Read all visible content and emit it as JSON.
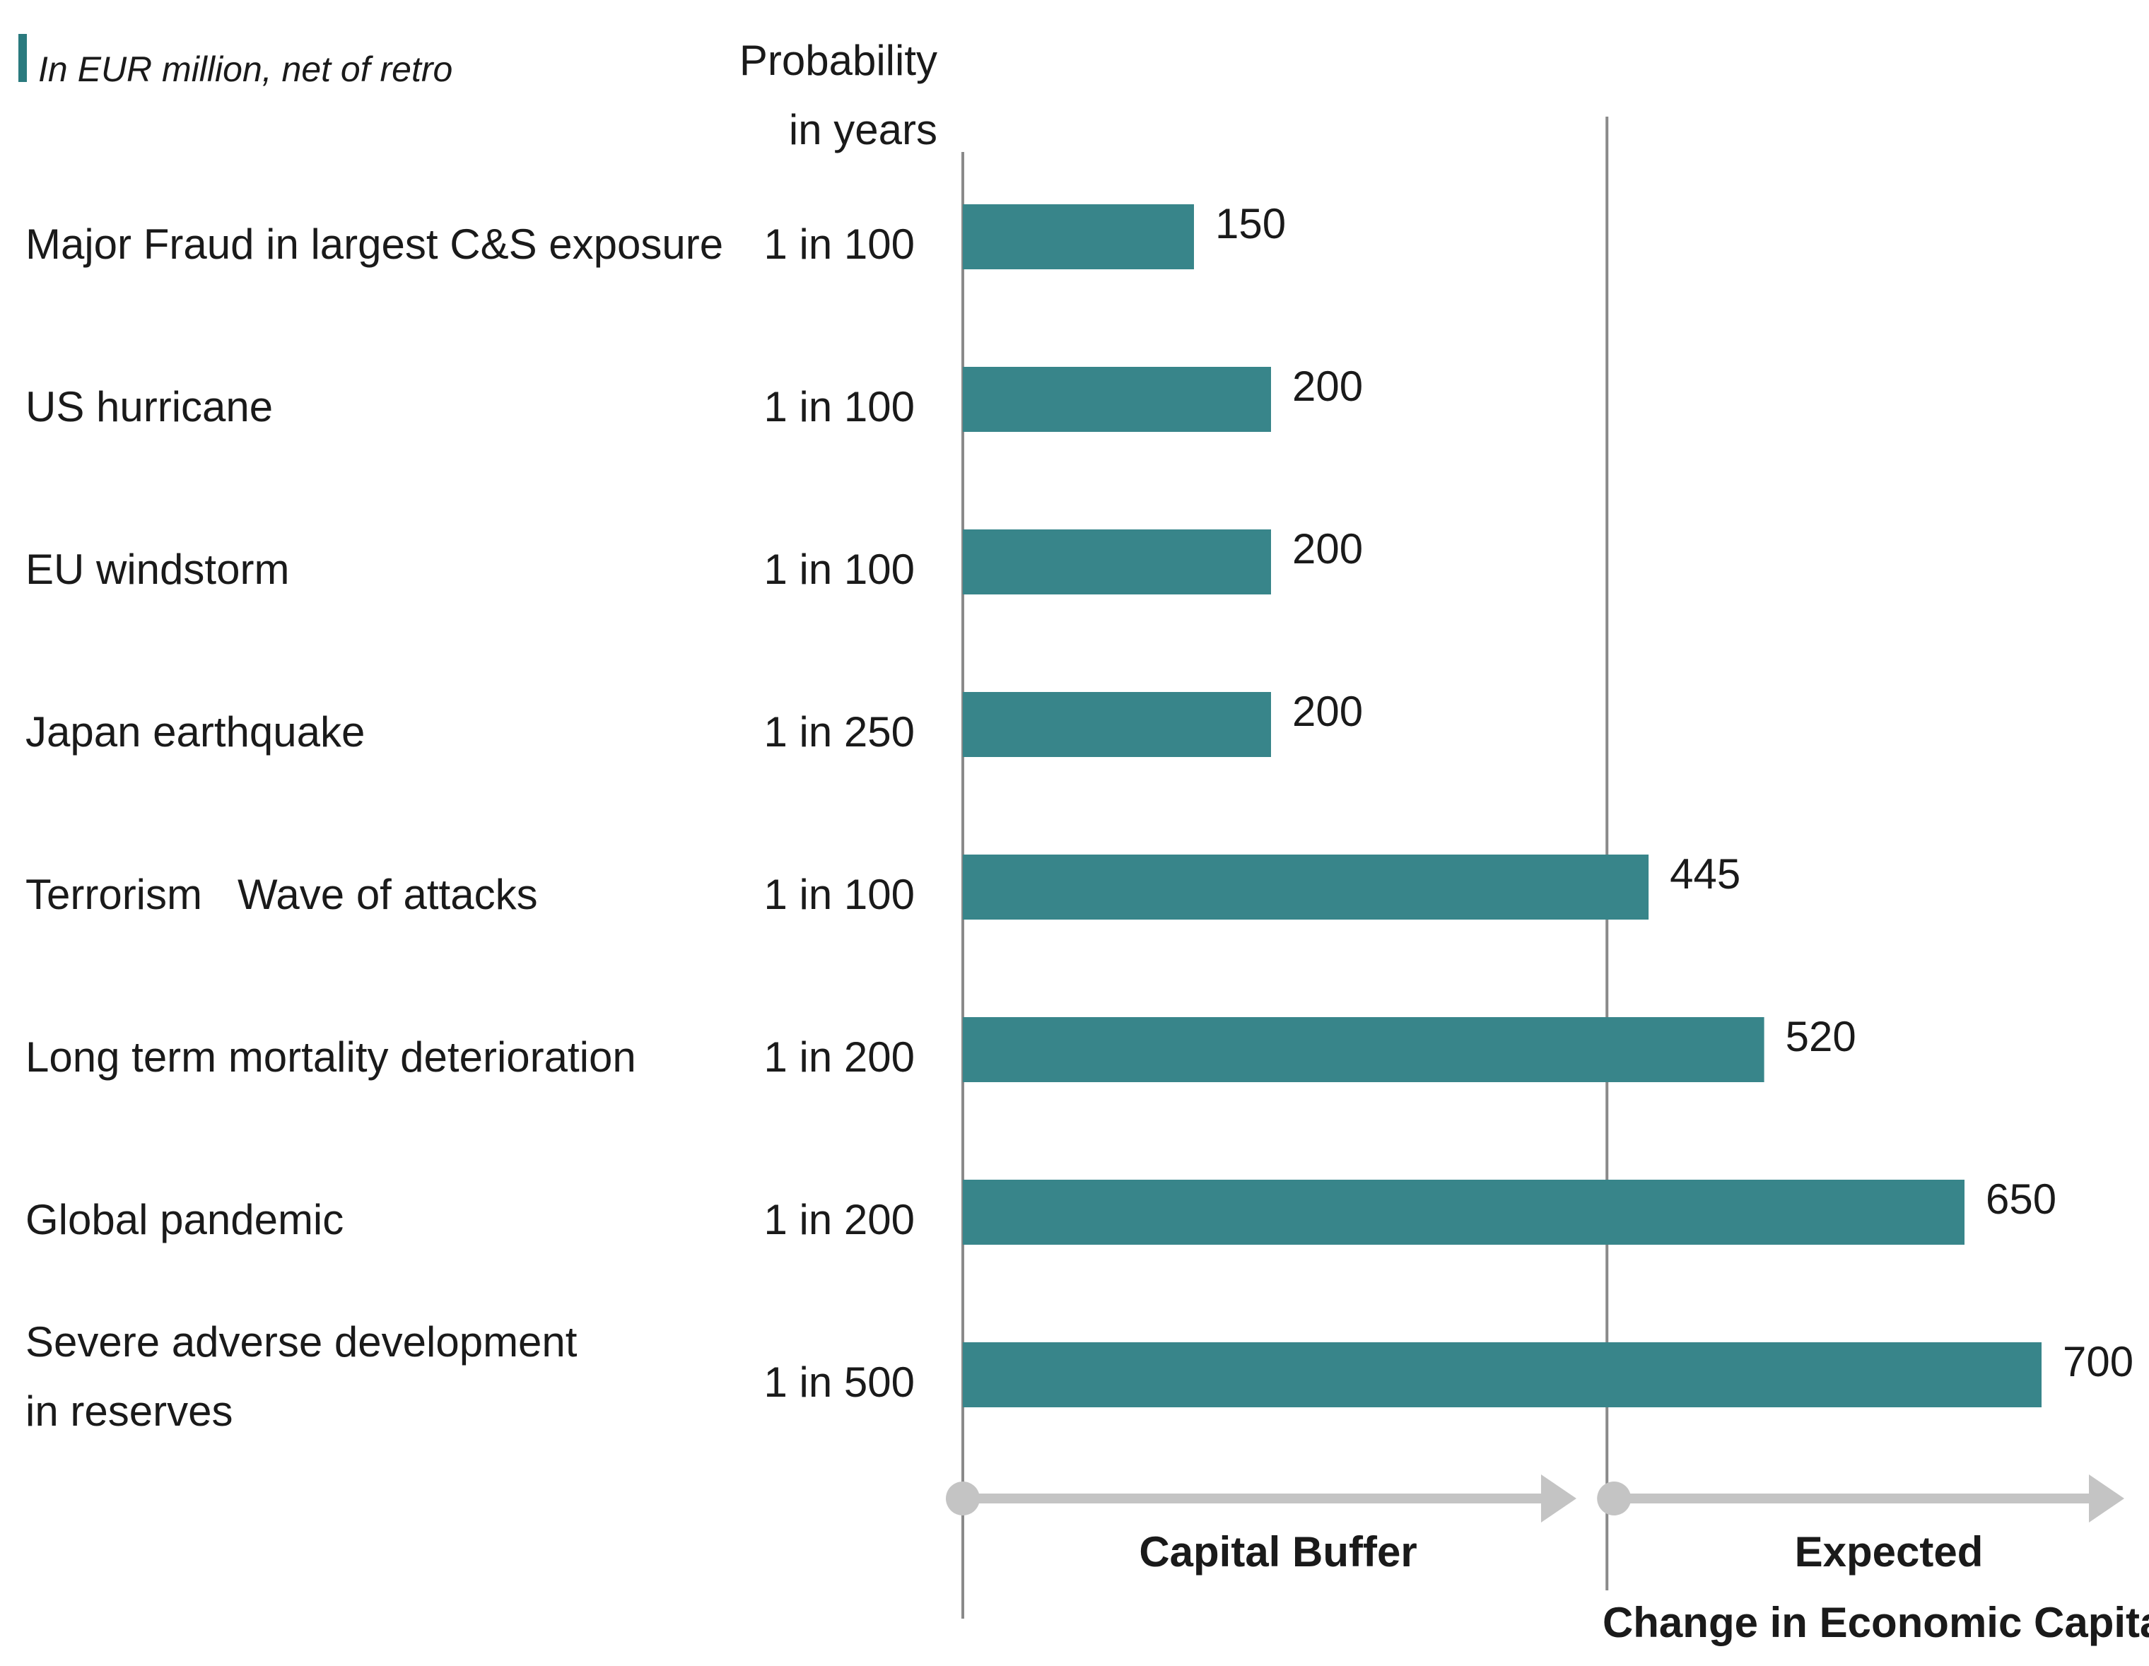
{
  "chart_data": {
    "type": "bar",
    "orientation": "horizontal",
    "subtitle": "In EUR million, net of retro",
    "probability_header": [
      "Probability",
      "in years"
    ],
    "categories": [
      [
        "Major Fraud in largest C&S exposure"
      ],
      [
        "US hurricane"
      ],
      [
        "EU windstorm"
      ],
      [
        "Japan earthquake"
      ],
      [
        "Terrorism   Wave of attacks"
      ],
      [
        "Long term mortality deterioration"
      ],
      [
        "Global pandemic"
      ],
      [
        "Severe adverse development",
        "in reserves"
      ]
    ],
    "probabilities": [
      "1 in 100",
      "1 in 100",
      "1 in 100",
      "1 in 250",
      "1 in 100",
      "1 in 200",
      "1 in 200",
      "1 in 500"
    ],
    "values": [
      150,
      200,
      200,
      200,
      445,
      520,
      650,
      700
    ],
    "xlim": [
      0,
      700
    ],
    "divider_value": 418,
    "zones": [
      {
        "label": [
          "Capital Buffer"
        ],
        "from": 0,
        "to": 418
      },
      {
        "label": [
          "Expected",
          "Change in Economic Capital"
        ],
        "from": 418,
        "to": 740
      }
    ],
    "colors": {
      "bar": "#38858a",
      "accent": "#2a7a7e",
      "axis": "#8a8a8a",
      "arrow": "#c4c4c4"
    }
  }
}
